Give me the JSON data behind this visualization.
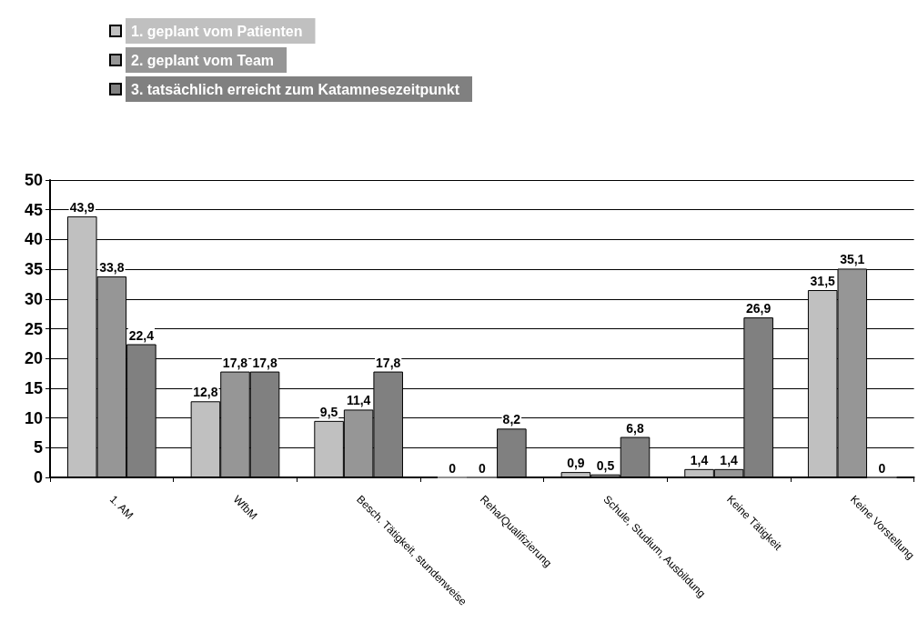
{
  "chart_data": {
    "type": "bar",
    "categories": [
      "1. AM",
      "WfbM",
      "Besch. Tätigkeit, stundenweise",
      "Reha/Qualifizierung",
      "Schule, Studium, Ausbildung",
      "Keine Tätigkeit",
      "Keine Vorstellung"
    ],
    "series": [
      {
        "name": "1. geplant vom Patienten",
        "color": "#c0c0c0",
        "values": [
          43.9,
          12.8,
          9.5,
          0,
          0.9,
          1.4,
          31.5
        ],
        "value_labels": [
          "43,9",
          "12,8",
          "9,5",
          "0",
          "0,9",
          "1,4",
          "31,5"
        ]
      },
      {
        "name": "2. geplant vom Team",
        "color": "#969696",
        "values": [
          33.8,
          17.8,
          11.4,
          0,
          0.5,
          1.4,
          35.1
        ],
        "value_labels": [
          "33,8",
          "17,8",
          "11,4",
          "0",
          "0,5",
          "1,4",
          "35,1"
        ]
      },
      {
        "name": "3. tatsächlich erreicht zum Katamnesezeitpunkt",
        "color": "#808080",
        "values": [
          22.4,
          17.8,
          17.8,
          8.2,
          6.8,
          26.9,
          0
        ],
        "value_labels": [
          "22,4",
          "17,8",
          "17,8",
          "8,2",
          "6,8",
          "26,9",
          "0"
        ]
      }
    ],
    "ylim": [
      0,
      50
    ],
    "yticks": [
      0,
      5,
      10,
      15,
      20,
      25,
      30,
      35,
      40,
      45,
      50
    ],
    "grid": "y",
    "legend": "top left"
  }
}
